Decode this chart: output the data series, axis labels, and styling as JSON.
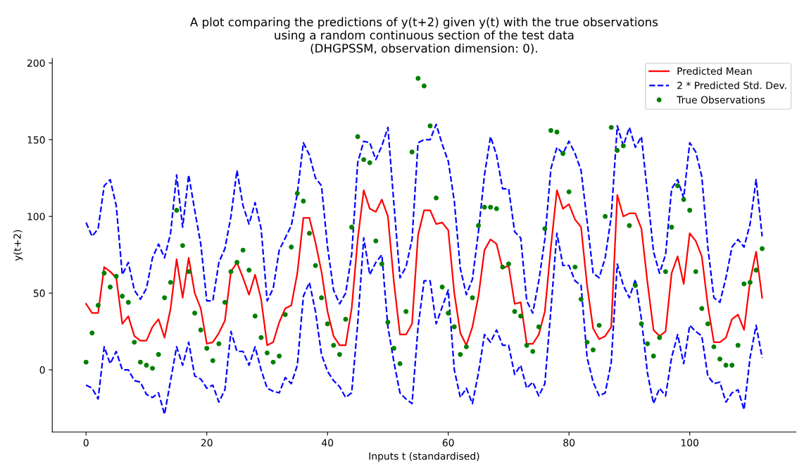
{
  "chart_data": {
    "type": "line",
    "title": "A plot comparing the predictions of y(t+2) given y(t) with the true observations\nusing a random continuous section of the test data\n(DHGPSSM, observation dimension: 0).",
    "xlabel": "Inputs t (standardised)",
    "ylabel": "y(t+2)",
    "xlim": [
      -5.6,
      117.6
    ],
    "ylim": [
      -40.5,
      203
    ],
    "xticks": [
      0,
      20,
      40,
      60,
      80,
      100
    ],
    "yticks": [
      0,
      50,
      100,
      150,
      200
    ],
    "grid": false,
    "legend": "top right",
    "x": [
      0,
      1,
      2,
      3,
      4,
      5,
      6,
      7,
      8,
      9,
      10,
      11,
      12,
      13,
      14,
      15,
      16,
      17,
      18,
      19,
      20,
      21,
      22,
      23,
      24,
      25,
      26,
      27,
      28,
      29,
      30,
      31,
      32,
      33,
      34,
      35,
      36,
      37,
      38,
      39,
      40,
      41,
      42,
      43,
      44,
      45,
      46,
      47,
      48,
      49,
      50,
      51,
      52,
      53,
      54,
      55,
      56,
      57,
      58,
      59,
      60,
      61,
      62,
      63,
      64,
      65,
      66,
      67,
      68,
      69,
      70,
      71,
      72,
      73,
      74,
      75,
      76,
      77,
      78,
      79,
      80,
      81,
      82,
      83,
      84,
      85,
      86,
      87,
      88,
      89,
      90,
      91,
      92,
      93,
      94,
      95,
      96,
      97,
      98,
      99,
      100,
      101,
      102,
      103,
      104,
      105,
      106,
      107,
      108,
      109,
      110,
      111,
      112
    ],
    "series": [
      {
        "name": "Predicted Mean",
        "color": "#ff0000",
        "line_style": "solid",
        "marker": "none",
        "values": [
          43,
          37,
          37,
          67,
          64,
          60,
          30,
          35,
          22,
          19,
          19,
          28,
          33,
          21,
          40,
          72,
          47,
          73,
          50,
          40,
          17,
          18,
          24,
          32,
          64,
          70,
          60,
          49,
          62,
          46,
          16,
          18,
          31,
          40,
          42,
          63,
          99,
          99,
          83,
          64,
          38,
          22,
          16,
          16,
          40,
          85,
          117,
          105,
          103,
          111,
          100,
          57,
          23,
          23,
          30,
          88,
          104,
          104,
          95,
          96,
          91,
          50,
          24,
          16,
          28,
          48,
          78,
          85,
          82,
          66,
          68,
          43,
          44,
          17,
          17,
          23,
          38,
          80,
          117,
          105,
          108,
          98,
          93,
          55,
          27,
          20,
          22,
          28,
          114,
          100,
          102,
          102,
          92,
          57,
          26,
          22,
          25,
          63,
          74,
          56,
          89,
          84,
          74,
          42,
          18,
          18,
          21,
          33,
          36,
          26,
          58,
          77,
          47
        ]
      },
      {
        "name": "2 * Predicted Std. Dev.",
        "color": "#0000ff",
        "line_style": "dashed",
        "marker": "none",
        "values": [
          96,
          87,
          92,
          120,
          124,
          107,
          62,
          70,
          52,
          46,
          53,
          73,
          82,
          73,
          89,
          127,
          93,
          127,
          104,
          82,
          45,
          45,
          70,
          79,
          100,
          130,
          107,
          95,
          109,
          92,
          45,
          53,
          78,
          86,
          94,
          115,
          148,
          140,
          125,
          120,
          80,
          52,
          43,
          50,
          75,
          135,
          149,
          148,
          137,
          146,
          158,
          108,
          60,
          67,
          85,
          148,
          150,
          150,
          160,
          147,
          136,
          110,
          66,
          49,
          59,
          90,
          127,
          152,
          140,
          118,
          118,
          90,
          86,
          45,
          37,
          58,
          85,
          131,
          145,
          141,
          149,
          141,
          130,
          97,
          63,
          60,
          73,
          100,
          159,
          146,
          158,
          145,
          152,
          115,
          77,
          63,
          75,
          118,
          124,
          112,
          148,
          142,
          126,
          80,
          47,
          44,
          60,
          80,
          85,
          80,
          95,
          124,
          87
        ]
      },
      {
        "color": "#0000ff",
        "line_style": "dashed",
        "marker": "none",
        "values": [
          -10,
          -12,
          -19,
          15,
          4,
          12,
          0,
          0,
          -7,
          -8,
          -16,
          -18,
          -15,
          -29,
          -7,
          15,
          3,
          18,
          -4,
          -6,
          -12,
          -10,
          -21,
          -13,
          25,
          12,
          12,
          3,
          15,
          0,
          -12,
          -14,
          -15,
          -5,
          -9,
          3,
          48,
          57,
          38,
          10,
          -1,
          -7,
          -11,
          -18,
          -15,
          30,
          86,
          62,
          70,
          75,
          28,
          5,
          -15,
          -19,
          -22,
          28,
          58,
          58,
          30,
          41,
          52,
          0,
          -18,
          -12,
          -22,
          -2,
          23,
          18,
          26,
          16,
          16,
          -3,
          3,
          -12,
          -8,
          -17,
          -9,
          39,
          89,
          68,
          68,
          58,
          55,
          8,
          -8,
          -17,
          -15,
          5,
          69,
          55,
          47,
          59,
          33,
          -2,
          -22,
          -12,
          -17,
          8,
          23,
          4,
          29,
          25,
          22,
          -4,
          -9,
          -8,
          -21,
          -15,
          -13,
          -26,
          8,
          29,
          8
        ]
      },
      {
        "name": "True Observations",
        "color": "#008000",
        "type": "scatter",
        "marker": "circle",
        "values": [
          5,
          24,
          42,
          63,
          54,
          61,
          48,
          44,
          18,
          5,
          3,
          1,
          10,
          47,
          57,
          104,
          81,
          64,
          37,
          26,
          14,
          6,
          17,
          44,
          64,
          70,
          78,
          65,
          35,
          21,
          11,
          5,
          9,
          36,
          80,
          115,
          110,
          89,
          68,
          47,
          30,
          16,
          10,
          33,
          93,
          152,
          137,
          135,
          84,
          69,
          31,
          14,
          4,
          38,
          142,
          190,
          185,
          159,
          112,
          54,
          37,
          28,
          10,
          15,
          47,
          94,
          106,
          106,
          105,
          67,
          69,
          38,
          35,
          16,
          12,
          28,
          92,
          156,
          155,
          141,
          116,
          67,
          46,
          18,
          13,
          29,
          100,
          158,
          143,
          146,
          94,
          55,
          30,
          17,
          9,
          21,
          64,
          93,
          120,
          111,
          104,
          64,
          40,
          30,
          15,
          7,
          3,
          3,
          16,
          56,
          57,
          65,
          79
        ]
      }
    ]
  }
}
